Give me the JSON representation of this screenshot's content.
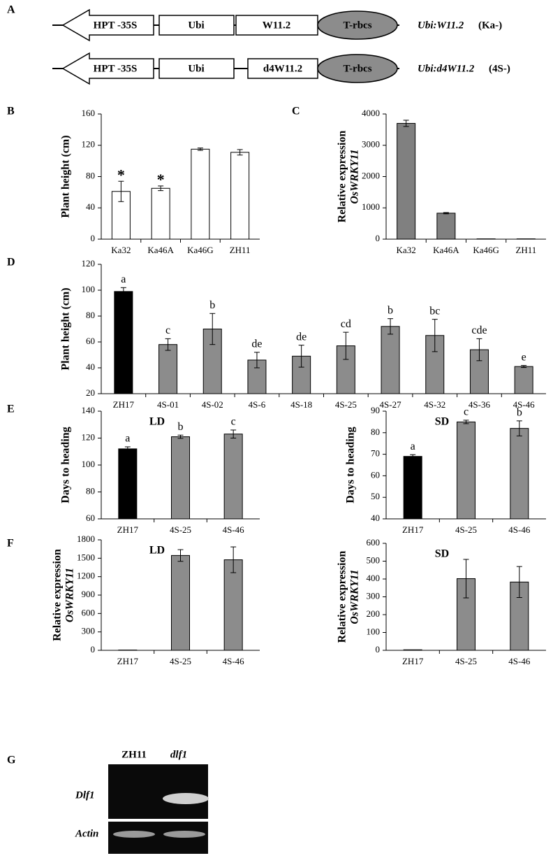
{
  "panels": [
    "A",
    "B",
    "C",
    "D",
    "E",
    "F",
    "G"
  ],
  "constructs": [
    {
      "parts": [
        "HPT -35S",
        "Ubi",
        "W11.2",
        "T-rbcs"
      ],
      "name": "Ubi:W11.2",
      "suffix": "(Ka-)"
    },
    {
      "parts": [
        "HPT -35S",
        "Ubi",
        "d4W11.2",
        "T-rbcs"
      ],
      "name": "Ubi:d4W11.2",
      "suffix": "(4S-)"
    }
  ],
  "chart_data": [
    {
      "type": "bar",
      "ylabel": "Plant height (cm)",
      "categories": [
        "Ka32",
        "Ka46A",
        "Ka46G",
        "ZH11"
      ],
      "values": [
        61,
        65,
        115,
        111
      ],
      "errors": [
        13,
        3,
        1.5,
        3.5
      ],
      "annotations": [
        "*",
        "*",
        null,
        null
      ],
      "color": "#ffffff",
      "ylim": [
        0,
        160
      ],
      "yticks": [
        0,
        40,
        80,
        120,
        160
      ]
    },
    {
      "type": "bar",
      "ylabel": "Relative expression",
      "ylabel_italic": "OsWRKY11",
      "categories": [
        "Ka32",
        "Ka46A",
        "Ka46G",
        "ZH11"
      ],
      "values": [
        3700,
        830,
        10,
        10
      ],
      "errors": [
        100,
        20,
        0,
        0
      ],
      "color": "#808080",
      "ylim": [
        0,
        4000
      ],
      "yticks": [
        0,
        1000,
        2000,
        3000,
        4000
      ]
    },
    {
      "type": "bar",
      "ylabel": "Plant height (cm)",
      "categories": [
        "ZH17",
        "4S-01",
        "4S-02",
        "4S-6",
        "4S-18",
        "4S-25",
        "4S-27",
        "4S-32",
        "4S-36",
        "4S-46"
      ],
      "values": [
        99,
        58,
        70,
        46,
        49,
        57,
        72,
        65,
        54,
        41
      ],
      "errors": [
        3,
        4.5,
        12,
        6,
        8.5,
        10.5,
        6,
        12.5,
        8.5,
        0.8
      ],
      "annotations": [
        "a",
        "c",
        "b",
        "de",
        "de",
        "cd",
        "b",
        "bc",
        "cde",
        "e"
      ],
      "colors": [
        "#000000",
        "#8c8c8c",
        "#8c8c8c",
        "#8c8c8c",
        "#8c8c8c",
        "#8c8c8c",
        "#8c8c8c",
        "#8c8c8c",
        "#8c8c8c",
        "#8c8c8c"
      ],
      "ylim": [
        20,
        120
      ],
      "yticks": [
        20,
        40,
        60,
        80,
        100,
        120
      ]
    },
    {
      "type": "bar",
      "title": "LD",
      "ylabel": "Days to heading",
      "categories": [
        "ZH17",
        "4S-25",
        "4S-46"
      ],
      "values": [
        112,
        121,
        123
      ],
      "errors": [
        1.5,
        1.2,
        3
      ],
      "annotations": [
        "a",
        "b",
        "c"
      ],
      "colors": [
        "#000000",
        "#8c8c8c",
        "#8c8c8c"
      ],
      "ylim": [
        60,
        140
      ],
      "yticks": [
        60,
        80,
        100,
        120,
        140
      ]
    },
    {
      "type": "bar",
      "title": "SD",
      "ylabel": "Days to heading",
      "categories": [
        "ZH17",
        "4S-25",
        "4S-46"
      ],
      "values": [
        69,
        85,
        82
      ],
      "errors": [
        0.8,
        0.8,
        3.5
      ],
      "annotations": [
        "a",
        "c",
        "b"
      ],
      "colors": [
        "#000000",
        "#8c8c8c",
        "#8c8c8c"
      ],
      "ylim": [
        40,
        90
      ],
      "yticks": [
        40,
        50,
        60,
        70,
        80,
        90
      ]
    },
    {
      "type": "bar",
      "title": "LD",
      "ylabel": "Relative expression",
      "ylabel_italic": "OsWRKY11",
      "categories": [
        "ZH17",
        "4S-25",
        "4S-46"
      ],
      "values": [
        5,
        1545,
        1475
      ],
      "errors": [
        0,
        95,
        210
      ],
      "colors": [
        "#8c8c8c",
        "#8c8c8c",
        "#8c8c8c"
      ],
      "ylim": [
        0,
        1800
      ],
      "yticks": [
        0,
        300,
        600,
        900,
        1200,
        1500,
        1800
      ]
    },
    {
      "type": "bar",
      "title": "SD",
      "ylabel": "Relative expression",
      "ylabel_italic": "OsWRKY11",
      "categories": [
        "ZH17",
        "4S-25",
        "4S-46"
      ],
      "values": [
        3,
        402,
        383
      ],
      "errors": [
        0,
        108,
        87
      ],
      "colors": [
        "#8c8c8c",
        "#8c8c8c",
        "#8c8c8c"
      ],
      "ylim": [
        0,
        600
      ],
      "yticks": [
        0,
        100,
        200,
        300,
        400,
        500,
        600
      ]
    }
  ],
  "gel": {
    "lanes": [
      "ZH11",
      "dlf1"
    ],
    "rows": [
      "Dlf1",
      "Actin"
    ]
  }
}
